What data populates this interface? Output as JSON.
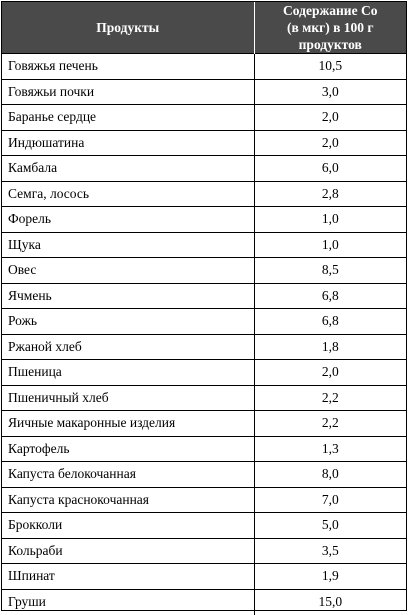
{
  "table": {
    "headers": {
      "product": "Продукты",
      "content_line1": "Содержание Co",
      "content_line2": "(в мкг) в 100 г продуктов"
    },
    "rows": [
      {
        "name": "Говяжья печень",
        "value": "10,5"
      },
      {
        "name": "Говяжьи почки",
        "value": "3,0"
      },
      {
        "name": "Баранье сердце",
        "value": "2,0"
      },
      {
        "name": "Индюшатина",
        "value": "2,0"
      },
      {
        "name": "Камбала",
        "value": "6,0"
      },
      {
        "name": "Семга, лосось",
        "value": "2,8"
      },
      {
        "name": "Форель",
        "value": "1,0"
      },
      {
        "name": "Щука",
        "value": "1,0"
      },
      {
        "name": "Овес",
        "value": "8,5"
      },
      {
        "name": "Ячмень",
        "value": "6,8"
      },
      {
        "name": "Рожь",
        "value": "6,8"
      },
      {
        "name": "Ржаной хлеб",
        "value": "1,8"
      },
      {
        "name": "Пшеница",
        "value": "2,0"
      },
      {
        "name": "Пшеничный хлеб",
        "value": "2,2"
      },
      {
        "name": "Яичные макаронные изделия",
        "value": "2,2"
      },
      {
        "name": "Картофель",
        "value": "1,3"
      },
      {
        "name": "Капуста белокочанная",
        "value": "8,0"
      },
      {
        "name": "Капуста краснокочанная",
        "value": "7,0"
      },
      {
        "name": "Брокколи",
        "value": "5,0"
      },
      {
        "name": "Кольраби",
        "value": "3,5"
      },
      {
        "name": "Шпинат",
        "value": "1,9"
      },
      {
        "name": "Груши",
        "value": "15,0"
      }
    ]
  }
}
